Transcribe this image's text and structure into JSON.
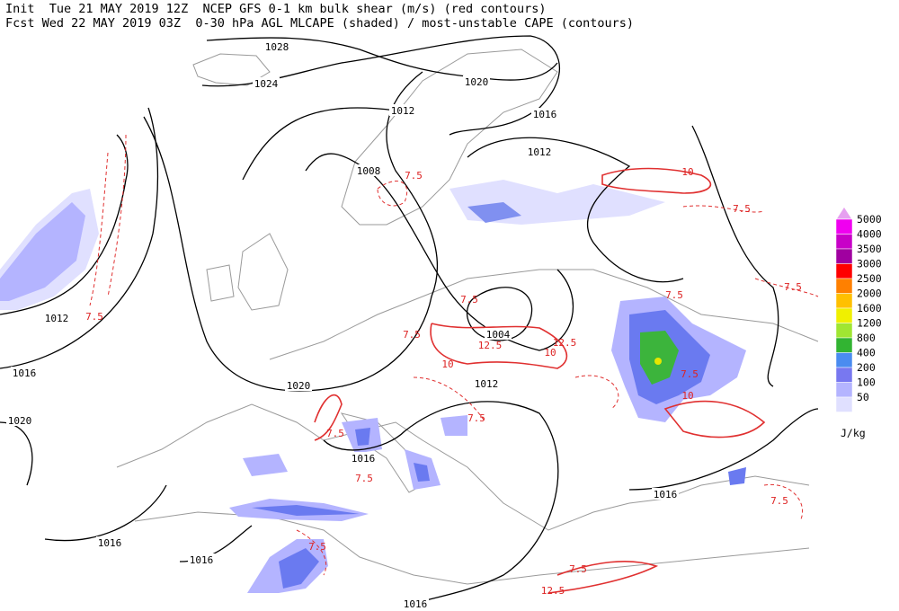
{
  "header": {
    "line1": "Init  Tue 21 MAY 2019 12Z  NCEP GFS 0-1 km bulk shear (m/s) (red contours)",
    "line2": "Fcst Wed 22 MAY 2019 03Z  0-30 hPa AGL MLCAPE (shaded) / most-unstable CAPE (contours)"
  },
  "legend": {
    "unit": "J/kg",
    "levels": [
      {
        "value": 5000,
        "color": "#f000f0"
      },
      {
        "value": 4000,
        "color": "#c800c8"
      },
      {
        "value": 3500,
        "color": "#a000a0"
      },
      {
        "value": 3000,
        "color": "#ff0000"
      },
      {
        "value": 2500,
        "color": "#ff8000"
      },
      {
        "value": 2000,
        "color": "#ffc000"
      },
      {
        "value": 1600,
        "color": "#f0f000"
      },
      {
        "value": 1200,
        "color": "#a0e632"
      },
      {
        "value": 800,
        "color": "#32b432"
      },
      {
        "value": 400,
        "color": "#4a8cf0"
      },
      {
        "value": 200,
        "color": "#7878f0"
      },
      {
        "value": 100,
        "color": "#b4b4ff"
      },
      {
        "value": 50,
        "color": "#e0e0ff"
      }
    ]
  },
  "isobar_labels": [
    1028,
    1024,
    1020,
    1016,
    1012,
    1012,
    1008,
    1012,
    1016,
    1020,
    1020,
    1004,
    1012,
    1016,
    1016,
    1016,
    1016,
    1016
  ],
  "shear_labels": [
    7.5,
    7.5,
    10,
    7.5,
    7.5,
    7.5,
    10,
    7.5,
    12.5,
    10,
    12.5,
    7.5,
    10,
    7.5,
    7.5,
    7.5,
    7.5,
    7.5,
    7.5,
    12.5,
    7.5
  ]
}
